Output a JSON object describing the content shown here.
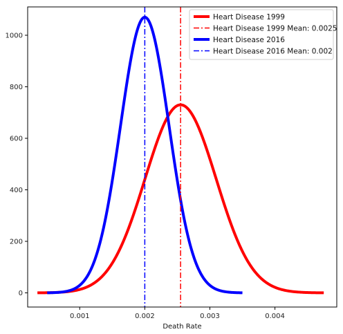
{
  "chart_data": {
    "type": "line",
    "title": "",
    "xlabel": "Death Rate",
    "ylabel": "",
    "xlim": [
      0.0002,
      0.00495
    ],
    "ylim": [
      -55,
      1110
    ],
    "xticks": [
      0.001,
      0.002,
      0.003,
      0.004
    ],
    "xtick_labels": [
      "0.001",
      "0.002",
      "0.003",
      "0.004"
    ],
    "yticks": [
      0,
      200,
      400,
      600,
      800,
      1000
    ],
    "ytick_labels": [
      "0",
      "200",
      "400",
      "600",
      "800",
      "1000"
    ],
    "grid": false,
    "legend_position": "top-right",
    "series": [
      {
        "name": "Heart Disease 1999",
        "style": "solid",
        "color": "#ff0000",
        "distribution": "normal",
        "mean": 0.00255,
        "peak": 730,
        "x_range": [
          0.00035,
          0.00475
        ]
      },
      {
        "name": "Heart Disease 2016",
        "style": "solid",
        "color": "#0000ff",
        "distribution": "normal",
        "mean": 0.002,
        "peak": 1070,
        "x_range": [
          0.0005,
          0.0035
        ]
      }
    ],
    "vlines": [
      {
        "name": "Heart Disease 1999 Mean: 0.0025",
        "x": 0.00255,
        "style": "dashdot",
        "color": "#ff0000"
      },
      {
        "name": "Heart Disease 2016 Mean: 0.002",
        "x": 0.002,
        "style": "dashdot",
        "color": "#0000ff"
      }
    ]
  }
}
